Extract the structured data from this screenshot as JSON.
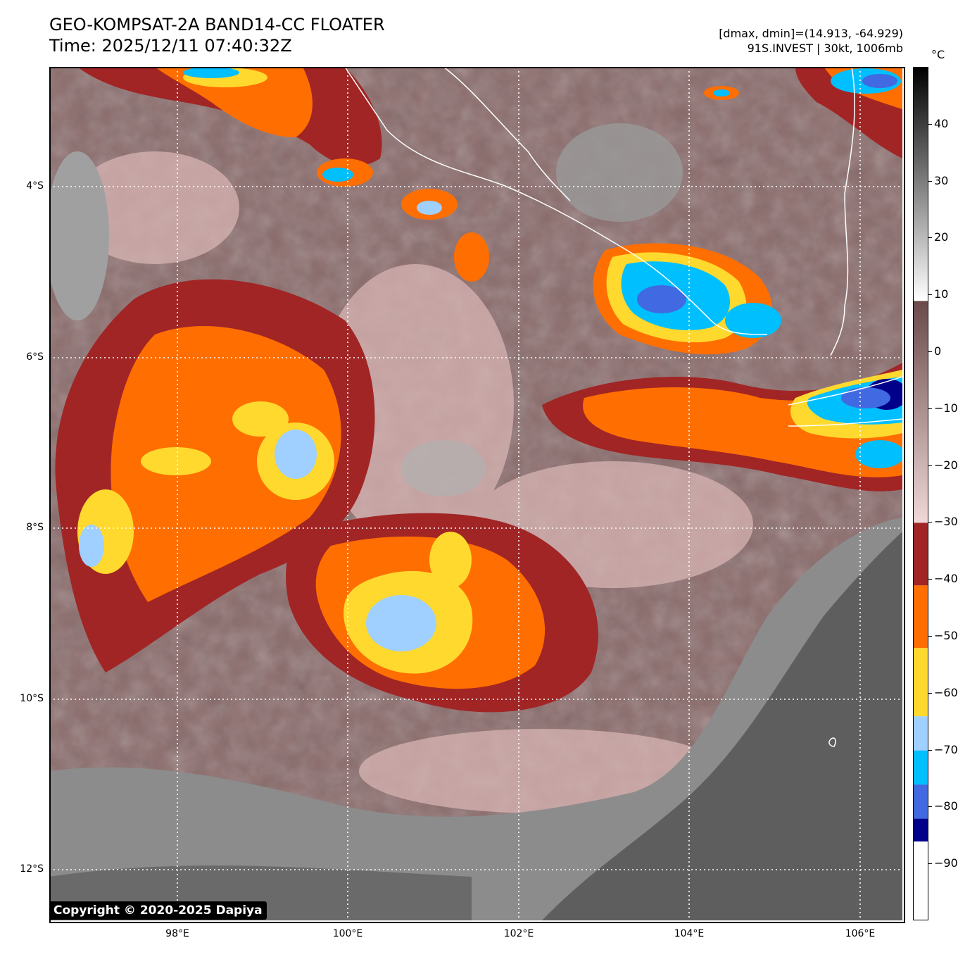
{
  "header": {
    "title_line1": "GEO-KOMPSAT-2A BAND14-CC FLOATER",
    "title_line2": "Time: 2025/12/11 07:40:32Z",
    "info_line1": "[dmax, dmin]=(14.913, -64.929)",
    "info_line2": "91S.INVEST | 30kt, 1006mb"
  },
  "map": {
    "lat_labels": [
      "4°S",
      "6°S",
      "8°S",
      "10°S",
      "12°S"
    ],
    "lon_labels": [
      "98°E",
      "100°E",
      "102°E",
      "104°E",
      "106°E"
    ],
    "lat_values": [
      -4,
      -6,
      -8,
      -10,
      -12
    ],
    "lon_values": [
      98,
      100,
      102,
      104,
      106
    ],
    "lon_range": [
      96.5,
      106.5
    ],
    "lat_range": [
      -12.6,
      -2.6
    ],
    "copyright": "Copyright © 2020-2025 Dapiya"
  },
  "colorbar": {
    "unit": "°C",
    "range": [
      -100,
      50
    ],
    "ticks": [
      "40",
      "30",
      "20",
      "10",
      "0",
      "−10",
      "−20",
      "−30",
      "−40",
      "−50",
      "−60",
      "−70",
      "−80",
      "−90"
    ],
    "tick_values": [
      40,
      30,
      20,
      10,
      0,
      -10,
      -20,
      -30,
      -40,
      -50,
      -60,
      -70,
      -80,
      -90
    ],
    "bands": [
      {
        "from": -100,
        "to": -86,
        "color": "#ffffff"
      },
      {
        "from": -86,
        "to": -82,
        "color": "#00008b"
      },
      {
        "from": -82,
        "to": -76,
        "color": "#4169e1"
      },
      {
        "from": -76,
        "to": -70,
        "color": "#00bfff"
      },
      {
        "from": -70,
        "to": -64,
        "color": "#9fd0ff"
      },
      {
        "from": -64,
        "to": -52,
        "color": "#ffd92e"
      },
      {
        "from": -52,
        "to": -41,
        "color": "#ff6e00"
      },
      {
        "from": -41,
        "to": -30,
        "color": "#a12525"
      }
    ],
    "gradients": [
      {
        "from": -30,
        "to": 9,
        "top_color": "#6a4a4a",
        "bottom_color": "#f0d8d8"
      },
      {
        "from": 9,
        "to": 50,
        "top_color": "#000000",
        "bottom_color": "#ffffff"
      }
    ]
  }
}
